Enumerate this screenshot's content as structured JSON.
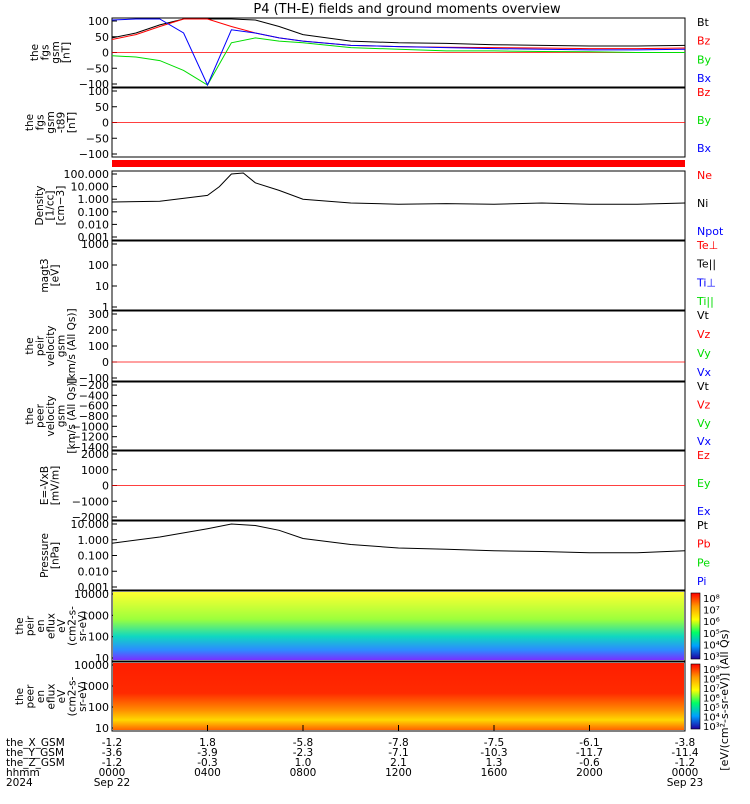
{
  "title": "P4 (TH-E) fields and ground moments overview",
  "colors": {
    "black": "#000000",
    "red": "#ff0000",
    "green": "#00dd00",
    "blue": "#0000ff"
  },
  "panels": [
    {
      "id": "fgs-gsm",
      "ylabel": [
        "the",
        "fgs",
        "gsm",
        "[nT]"
      ],
      "ticks": [
        "100",
        "50",
        "0",
        "−50",
        "−100"
      ],
      "legend": [
        {
          "text": "Bt",
          "color": "black"
        },
        {
          "text": "Bz",
          "color": "red"
        },
        {
          "text": "By",
          "color": "green"
        },
        {
          "text": "Bx",
          "color": "blue"
        }
      ]
    },
    {
      "id": "fgs-gsm-t89",
      "ylabel": [
        "the",
        "fgs",
        "gsm",
        "-t89",
        "[nT]"
      ],
      "ticks": [
        "100",
        "50",
        "0",
        "−50",
        "−100"
      ],
      "legend": [
        {
          "text": "Bz",
          "color": "red"
        },
        {
          "text": "By",
          "color": "green"
        },
        {
          "text": "Bx",
          "color": "blue"
        }
      ]
    },
    {
      "id": "density",
      "ylabel": [
        "Density",
        "[1/cc]",
        "[cm−3]"
      ],
      "ticks": [
        "100.000",
        "10.000",
        "1.000",
        "0.100",
        "0.010",
        "0.001"
      ],
      "legend": [
        {
          "text": "Ne",
          "color": "red"
        },
        {
          "text": "Ni",
          "color": "black"
        },
        {
          "text": "Npot",
          "color": "blue"
        }
      ]
    },
    {
      "id": "temperature",
      "ylabel": [
        "magt3",
        "[eV]"
      ],
      "ticks": [
        "1000",
        "100",
        "10",
        "1"
      ],
      "legend": [
        {
          "text": "Te⊥",
          "color": "red"
        },
        {
          "text": "Te||",
          "color": "black"
        },
        {
          "text": "Ti⊥",
          "color": "blue"
        },
        {
          "text": "Ti||",
          "color": "green"
        }
      ]
    },
    {
      "id": "peir-velocity",
      "ylabel": [
        "the",
        "peir",
        "velocity",
        "gsm",
        "[km/s (All Qs)]"
      ],
      "ticks": [
        "300",
        "200",
        "100",
        "0",
        "−100"
      ],
      "legend": [
        {
          "text": "Vt",
          "color": "black"
        },
        {
          "text": "Vz",
          "color": "red"
        },
        {
          "text": "Vy",
          "color": "green"
        },
        {
          "text": "Vx",
          "color": "blue"
        }
      ]
    },
    {
      "id": "peer-velocity",
      "ylabel": [
        "the",
        "peer",
        "velocity",
        "gsm",
        "[km/s (All Qs)]"
      ],
      "ticks": [
        "−200",
        "−400",
        "−600",
        "−800",
        "−1000",
        "−1200",
        "−1400"
      ],
      "legend": [
        {
          "text": "Vt",
          "color": "black"
        },
        {
          "text": "Vz",
          "color": "red"
        },
        {
          "text": "Vy",
          "color": "green"
        },
        {
          "text": "Vx",
          "color": "blue"
        }
      ]
    },
    {
      "id": "e-field",
      "ylabel": [
        "E=-VxB",
        "[mV/m]"
      ],
      "ticks": [
        "2000",
        "1000",
        "0",
        "−1000",
        "−2000"
      ],
      "legend": [
        {
          "text": "Ez",
          "color": "red"
        },
        {
          "text": "Ey",
          "color": "green"
        },
        {
          "text": "Ex",
          "color": "blue"
        }
      ]
    },
    {
      "id": "pressure",
      "ylabel": [
        "Pressure",
        "[nPa]"
      ],
      "ticks": [
        "10.000",
        "1.000",
        "0.100",
        "0.010",
        "0.001"
      ],
      "legend": [
        {
          "text": "Pt",
          "color": "black"
        },
        {
          "text": "Pb",
          "color": "red"
        },
        {
          "text": "Pe",
          "color": "green"
        },
        {
          "text": "Pi",
          "color": "blue"
        }
      ]
    },
    {
      "id": "peir-spec",
      "ylabel": [
        "the",
        "peir",
        "en",
        "eflux",
        "eV",
        "(cm2-s-",
        "sr-eV)"
      ],
      "ticks": [
        "10000",
        "1000",
        "100",
        "10"
      ],
      "colorbar_ticks": [
        "10⁸",
        "10⁷",
        "10⁶",
        "10⁵",
        "10⁴",
        "10³"
      ]
    },
    {
      "id": "peer-spec",
      "ylabel": [
        "the",
        "peer",
        "en",
        "eflux",
        "eV",
        "(cm2-s-",
        "sr-eV)"
      ],
      "ticks": [
        "10000",
        "1000",
        "100",
        "10"
      ],
      "colorbar_ticks": [
        "10⁹",
        "10⁸",
        "10⁷",
        "10⁶",
        "10⁵",
        "10⁴",
        "10³"
      ]
    }
  ],
  "colorbar_label": "[eV/(cm²-s-sr-eV)] (All Qs)",
  "xaxis": {
    "row_labels": [
      "the_X_GSM",
      "the_Y_GSM",
      "the_Z_GSM",
      "hhmm",
      "2024"
    ],
    "columns": [
      [
        "-1.2",
        "-3.6",
        "-1.2",
        "0000",
        "Sep 22"
      ],
      [
        "1.8",
        "-3.9",
        "-0.3",
        "0400",
        ""
      ],
      [
        "-5.8",
        "-2.3",
        "1.0",
        "0800",
        ""
      ],
      [
        "-7.8",
        "-7.1",
        "2.1",
        "1200",
        ""
      ],
      [
        "-7.5",
        "-10.3",
        "1.3",
        "1600",
        ""
      ],
      [
        "-6.1",
        "-11.7",
        "-0.6",
        "2000",
        ""
      ],
      [
        "-3.8",
        "-11.4",
        "-1.2",
        "0000",
        "Sep 23"
      ]
    ]
  },
  "chart_data": {
    "type": "line",
    "x_unit": "hours since 2024-09-22 00:00 UT",
    "xlim": [
      0,
      24
    ],
    "series": [
      {
        "panel": "fgs-gsm",
        "name": "Bt",
        "color": "black",
        "x": [
          0,
          1,
          2,
          3,
          4,
          5,
          6,
          7,
          8,
          10,
          12,
          14,
          16,
          18,
          20,
          22,
          24
        ],
        "y": [
          45,
          60,
          85,
          110,
          120,
          115,
          100,
          80,
          55,
          35,
          30,
          28,
          24,
          22,
          20,
          20,
          22
        ]
      },
      {
        "panel": "fgs-gsm",
        "name": "Bz",
        "color": "red",
        "x": [
          0,
          1,
          2,
          3,
          4,
          5,
          6,
          7,
          8,
          10,
          12,
          14,
          16,
          18,
          20,
          22,
          24
        ],
        "y": [
          40,
          55,
          80,
          105,
          110,
          80,
          60,
          45,
          35,
          22,
          18,
          16,
          15,
          14,
          12,
          12,
          14
        ]
      },
      {
        "panel": "fgs-gsm",
        "name": "By",
        "color": "green",
        "x": [
          0,
          1,
          2,
          3,
          4,
          5,
          6,
          7,
          8,
          10,
          12,
          14,
          16,
          18,
          20,
          22,
          24
        ],
        "y": [
          -10,
          -14,
          -25,
          -55,
          -100,
          30,
          45,
          35,
          30,
          15,
          10,
          5,
          5,
          3,
          2,
          0,
          0
        ]
      },
      {
        "panel": "fgs-gsm",
        "name": "Bx",
        "color": "blue",
        "x": [
          0,
          1,
          2,
          3,
          4,
          5,
          6,
          7,
          8,
          10,
          12,
          14,
          16,
          18,
          20,
          22,
          24
        ],
        "y": [
          100,
          110,
          110,
          60,
          -100,
          70,
          60,
          45,
          35,
          22,
          18,
          15,
          12,
          10,
          8,
          8,
          10
        ]
      },
      {
        "panel": "density",
        "name": "Ni",
        "color": "black",
        "x": [
          0,
          2,
          4,
          4.5,
          5,
          5.5,
          6,
          7,
          8,
          10,
          12,
          14,
          16,
          18,
          20,
          22,
          24
        ],
        "y": [
          0.6,
          0.7,
          2,
          10,
          100,
          120,
          20,
          5,
          1,
          0.5,
          0.4,
          0.45,
          0.4,
          0.5,
          0.4,
          0.4,
          0.5
        ]
      },
      {
        "panel": "pressure",
        "name": "Pt",
        "color": "black",
        "x": [
          0,
          2,
          4,
          5,
          6,
          7,
          8,
          10,
          12,
          14,
          16,
          18,
          20,
          22,
          24
        ],
        "y": [
          0.6,
          1.5,
          5,
          10,
          8,
          4,
          1.2,
          0.5,
          0.3,
          0.25,
          0.2,
          0.18,
          0.15,
          0.15,
          0.2
        ]
      }
    ],
    "spectrograms": [
      {
        "panel": "peir-spec",
        "ylim": [
          5,
          25000
        ],
        "yscale": "log",
        "colorscale": "rainbow"
      },
      {
        "panel": "peer-spec",
        "ylim": [
          5,
          25000
        ],
        "yscale": "log",
        "colorscale": "rainbow"
      }
    ]
  }
}
